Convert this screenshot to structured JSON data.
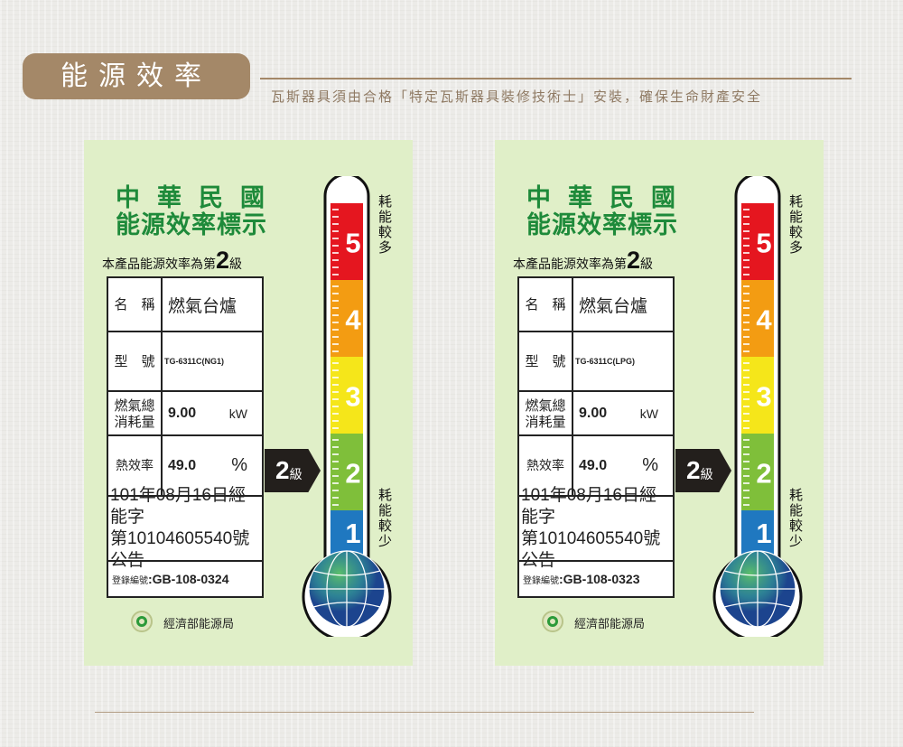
{
  "header": {
    "title": "能源效率",
    "note": "瓦斯器具須由合格「特定瓦斯器具裝修技術士」安裝，確保生命財產安全"
  },
  "colors": {
    "accent": "#a48868",
    "label_bg": "#e0efc8",
    "title_green": "#1e8a3a",
    "level5": "#e5161f",
    "level4": "#f39c12",
    "level3": "#f5e61a",
    "level2": "#7fbf3a",
    "level1": "#1f78c0"
  },
  "labels": [
    {
      "title1": "中華民國",
      "title2": "能源效率標示",
      "sub_prefix": "本產品能源效率為第",
      "sub_grade": "2",
      "sub_suffix": "級",
      "name_label": "名　稱",
      "name_value": "燃氣台爐",
      "model_label": "型　號",
      "model_value": "TG-6311C(NG1)",
      "consumption_label": "燃氣總消耗量",
      "consumption_value": "9.00",
      "consumption_unit": "kW",
      "efficiency_label": "熱效率",
      "efficiency_value": "49.0",
      "efficiency_unit": "%",
      "announce_line1": "101年08月16日經能字",
      "announce_line2": "第10104605540號公告",
      "reg_label": "登錄編號",
      "reg_value": ":GB-108-0324",
      "grade": "2",
      "grade_unit": "級",
      "scale_high": "耗能較多",
      "scale_low": "耗能較少",
      "agency": "經濟部能源局",
      "levels": [
        "5",
        "4",
        "3",
        "2",
        "1"
      ]
    },
    {
      "title1": "中華民國",
      "title2": "能源效率標示",
      "sub_prefix": "本產品能源效率為第",
      "sub_grade": "2",
      "sub_suffix": "級",
      "name_label": "名　稱",
      "name_value": "燃氣台爐",
      "model_label": "型　號",
      "model_value": "TG-6311C(LPG)",
      "consumption_label": "燃氣總消耗量",
      "consumption_value": "9.00",
      "consumption_unit": "kW",
      "efficiency_label": "熱效率",
      "efficiency_value": "49.0",
      "efficiency_unit": "%",
      "announce_line1": "101年08月16日經能字",
      "announce_line2": "第10104605540號公告",
      "reg_label": "登錄編號",
      "reg_value": ":GB-108-0323",
      "grade": "2",
      "grade_unit": "級",
      "scale_high": "耗能較多",
      "scale_low": "耗能較少",
      "agency": "經濟部能源局",
      "levels": [
        "5",
        "4",
        "3",
        "2",
        "1"
      ]
    }
  ]
}
